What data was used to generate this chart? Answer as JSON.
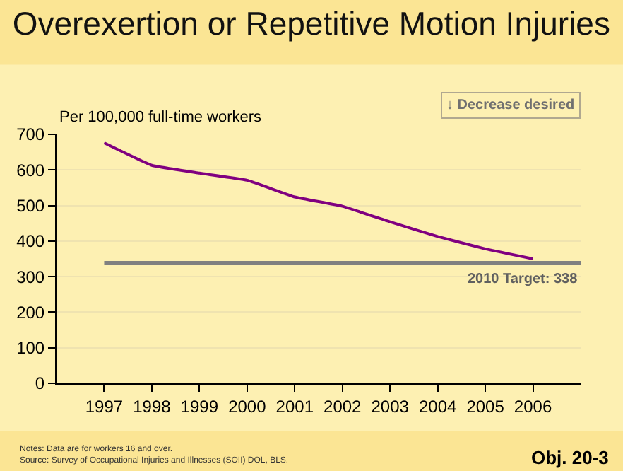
{
  "chart_data": {
    "type": "line",
    "title": "Overexertion or Repetitive Motion Injuries",
    "ylabel": "Per 100,000 full-time workers",
    "categories": [
      "1997",
      "1998",
      "1999",
      "2000",
      "2001",
      "2002",
      "2003",
      "2004",
      "2005",
      "2006"
    ],
    "series": [
      {
        "color": "#800080",
        "values": [
          676,
          613,
          591,
          571,
          524,
          498,
          454,
          413,
          378,
          350
        ]
      }
    ],
    "ylim": [
      0,
      700
    ],
    "yticks": [
      0,
      100,
      200,
      300,
      400,
      500,
      600,
      700
    ],
    "grid": "y",
    "marker": "none",
    "line_style": "solid",
    "ref_lines": [
      {
        "axis": "y",
        "value": 338,
        "label": "2010 Target: 338",
        "color": "#808080",
        "line_style": "solid"
      }
    ],
    "annotations": [
      "↓ Decrease desired",
      "Notes: Data are for workers 16 and over.\nSource: Survey of Occupational Injuries and Illnesses (SOII) DOL, BLS.",
      "Obj. 20-3"
    ]
  }
}
